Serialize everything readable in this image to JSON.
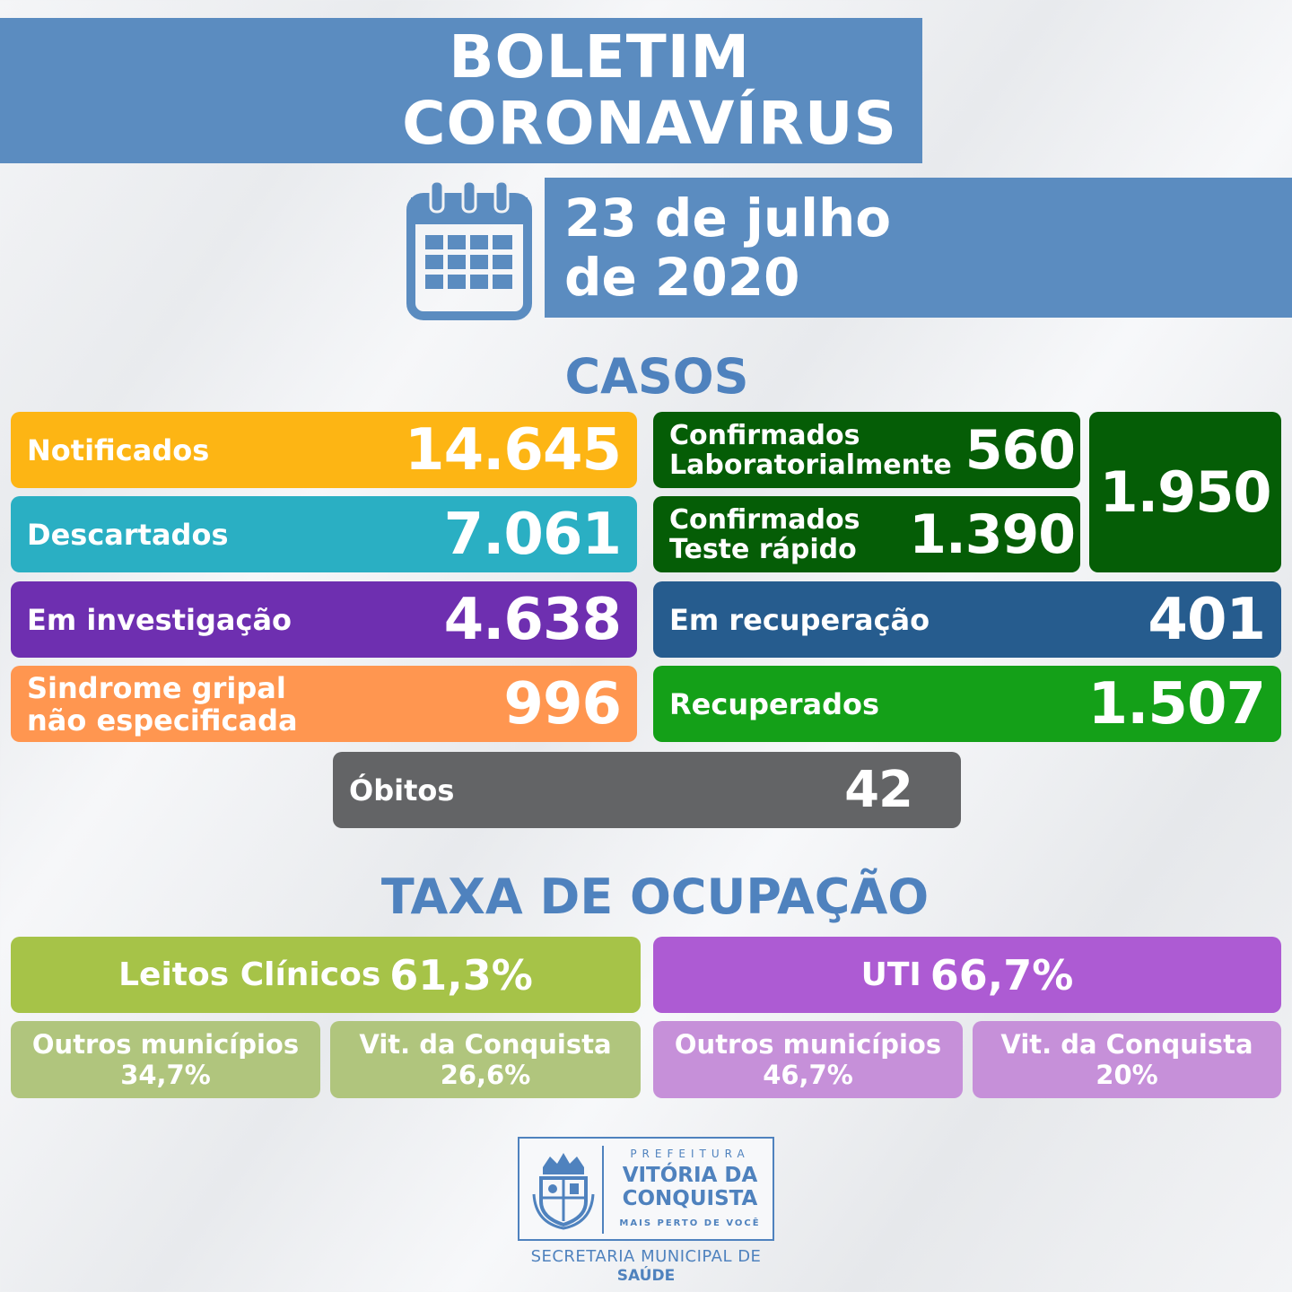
{
  "header": {
    "title_line1": "BOLETIM",
    "title_line2": "CORONAVÍRUS"
  },
  "date": {
    "line1": "23 de julho",
    "line2": "de 2020"
  },
  "casos": {
    "title": "CASOS",
    "notificados": {
      "label": "Notificados",
      "value": "14.645"
    },
    "descartados": {
      "label": "Descartados",
      "value": "7.061"
    },
    "investigacao": {
      "label": "Em investigação",
      "value": "4.638"
    },
    "sindrome": {
      "label_line1": "Sindrome gripal",
      "label_line2": "não especificada",
      "value": "996"
    },
    "conf_lab": {
      "label_line1": "Confirmados",
      "label_line2": "Laboratorialmente",
      "value": "560"
    },
    "conf_rapido": {
      "label_line1": "Confirmados",
      "label_line2": "Teste rápido",
      "value": "1.390"
    },
    "confirmados_total": {
      "value": "1.950"
    },
    "recuperacao": {
      "label": "Em recuperação",
      "value": "401"
    },
    "recuperados": {
      "label": "Recuperados",
      "value": "1.507"
    },
    "obitos": {
      "label": "Óbitos",
      "value": "42"
    }
  },
  "ocupacao": {
    "title": "TAXA DE OCUPAÇÃO",
    "leitos": {
      "label": "Leitos Clínicos",
      "value": "61,3%",
      "outros": {
        "label": "Outros municípios",
        "value": "34,7%"
      },
      "vitoria": {
        "label": "Vit. da Conquista",
        "value": "26,6%"
      }
    },
    "uti": {
      "label": "UTI",
      "value": "66,7%",
      "outros": {
        "label": "Outros municípios",
        "value": "46,7%"
      },
      "vitoria": {
        "label": "Vit. da Conquista",
        "value": "20%"
      }
    }
  },
  "logo": {
    "prefeitura": "PREFEITURA",
    "name_line1": "VITÓRIA DA",
    "name_line2": "CONQUISTA",
    "slogan": "MAIS PERTO DE VOCÊ",
    "secretaria_line1": "SECRETARIA MUNICIPAL DE",
    "secretaria_line2": "SAÚDE"
  },
  "colors": {
    "primary_blue": "#5b8cc0",
    "notificados": "#fdb514",
    "descartados": "#2aafc3",
    "investigacao": "#6e2fb0",
    "sindrome": "#ff9650",
    "confirmados": "#055d06",
    "recuperacao": "#265c8e",
    "recuperados": "#14a018",
    "obitos": "#636466",
    "leitos": "#a6c348",
    "uti": "#ad5bd3"
  },
  "icons": {
    "calendar": "calendar-icon",
    "crest": "city-crest-icon"
  }
}
